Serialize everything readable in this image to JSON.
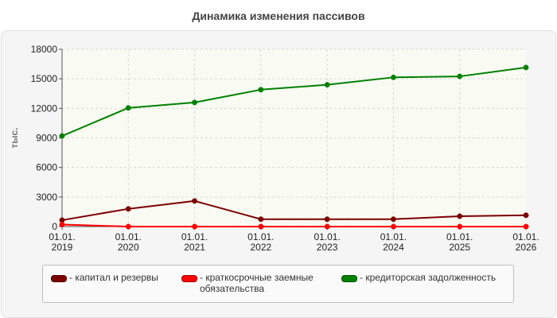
{
  "chart_data": {
    "type": "line",
    "title": "Динамика изменения пассивов",
    "ylabel": "тыс.",
    "xlabel": "",
    "ylim": [
      0,
      18000
    ],
    "yticks": [
      "0",
      "3000",
      "6000",
      "9000",
      "12000",
      "15000",
      "18000"
    ],
    "categories": [
      "01.01.2019",
      "01.01.2020",
      "01.01.2021",
      "01.01.2022",
      "01.01.2023",
      "01.01.2024",
      "01.01.2025",
      "01.01.2026"
    ],
    "category_labels": [
      [
        "01.01.",
        "2019"
      ],
      [
        "01.01.",
        "2020"
      ],
      [
        "01.01.",
        "2021"
      ],
      [
        "01.01.",
        "2022"
      ],
      [
        "01.01.",
        "2023"
      ],
      [
        "01.01.",
        "2024"
      ],
      [
        "01.01.",
        "2025"
      ],
      [
        "01.01.",
        "2026"
      ]
    ],
    "grid": true,
    "legend_position": "bottom",
    "series": [
      {
        "name": "- капитал и резервы",
        "color": "#7b0000",
        "values": [
          650,
          1800,
          2600,
          750,
          750,
          750,
          1050,
          1150
        ]
      },
      {
        "name": "- краткосрочные заемные обязательства",
        "color": "#ff0000",
        "values": [
          200,
          0,
          0,
          0,
          0,
          0,
          0,
          0
        ]
      },
      {
        "name": "- кредиторская задолженность",
        "color": "#008000",
        "values": [
          9200,
          12050,
          12600,
          13900,
          14400,
          15150,
          15250,
          16150
        ]
      }
    ]
  }
}
